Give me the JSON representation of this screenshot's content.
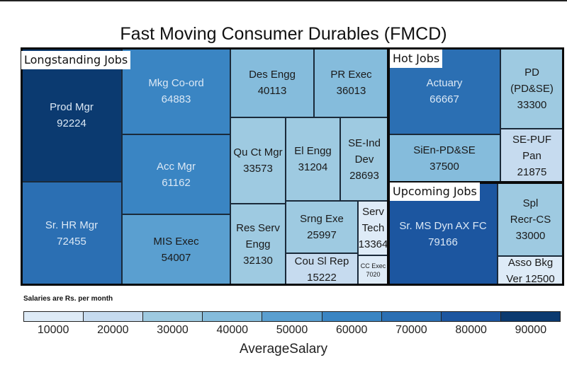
{
  "chart_data": {
    "type": "treemap",
    "title": "Fast Moving Consumer Durables (FMCD)",
    "note": "Salaries are Rs. per month",
    "legend": {
      "title": "AverageSalary",
      "ticks": [
        "10000",
        "20000",
        "30000",
        "40000",
        "50000",
        "60000",
        "70000",
        "80000",
        "90000"
      ],
      "colors": [
        "#deebf7",
        "#c6dbef",
        "#9ecae1",
        "#85bcdc",
        "#5a9fd0",
        "#3a85c3",
        "#2b6fb3",
        "#1c56a0",
        "#0b3a70"
      ],
      "placement": "bottom"
    },
    "groups": [
      {
        "name": "Longstanding Jobs",
        "items": [
          {
            "label": [
              "Prod Mgr"
            ],
            "value": 92224
          },
          {
            "label": [
              "Sr. HR Mgr"
            ],
            "value": 72455
          },
          {
            "label": [
              "Mkg Co-ord"
            ],
            "value": 64883
          },
          {
            "label": [
              "Acc Mgr"
            ],
            "value": 61162
          },
          {
            "label": [
              "MIS Exec"
            ],
            "value": 54007
          },
          {
            "label": [
              "Des Engg"
            ],
            "value": 40113
          },
          {
            "label": [
              "PR Exec"
            ],
            "value": 36013
          },
          {
            "label": [
              "Qu Ct Mgr"
            ],
            "value": 33573
          },
          {
            "label": [
              "El Engg"
            ],
            "value": 31204
          },
          {
            "label": [
              "SE-Ind",
              "Dev"
            ],
            "value": 28693
          },
          {
            "label": [
              "Res Serv",
              "Engg"
            ],
            "value": 32130
          },
          {
            "label": [
              "Srng Exe"
            ],
            "value": 25997
          },
          {
            "label": [
              "Cou Sl Rep"
            ],
            "value": 15222
          },
          {
            "label": [
              "Serv",
              "Tech"
            ],
            "value": 13364
          },
          {
            "label": [
              "CC Exec"
            ],
            "value": 7020
          }
        ]
      },
      {
        "name": "Hot Jobs",
        "items": [
          {
            "label": [
              "Actuary"
            ],
            "value": 66667
          },
          {
            "label": [
              "SiEn-PD&SE"
            ],
            "value": 37500
          },
          {
            "label": [
              "PD",
              "(PD&SE)"
            ],
            "value": 33300
          },
          {
            "label": [
              "SE-PUF",
              "Pan"
            ],
            "value": 21875
          }
        ]
      },
      {
        "name": "Upcoming Jobs",
        "items": [
          {
            "label": [
              "Sr. MS Dyn AX FC"
            ],
            "value": 79166
          },
          {
            "label": [
              "Spl",
              "Recr-CS"
            ],
            "value": 33000
          },
          {
            "label": [
              "Asso Bkg",
              "Ver"
            ],
            "value": 12500
          }
        ]
      }
    ]
  }
}
